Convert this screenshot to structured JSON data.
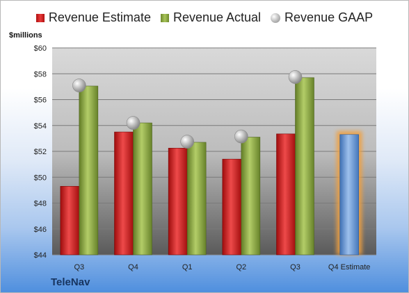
{
  "chart_data": {
    "type": "bar",
    "company": "TeleNav",
    "y_unit_label": "$millions",
    "categories": [
      "Q3",
      "Q4",
      "Q1",
      "Q2",
      "Q3",
      "Q4 Estimate"
    ],
    "series": [
      {
        "name": "Revenue Estimate",
        "color": "#d42020",
        "values": [
          49.3,
          53.5,
          52.25,
          51.4,
          53.35,
          null
        ]
      },
      {
        "name": "Revenue Actual",
        "color": "#8fad45",
        "values": [
          57.05,
          54.2,
          52.7,
          53.1,
          57.7,
          null
        ]
      },
      {
        "name": "Revenue GAAP",
        "color": "#b0b0b0",
        "type": "marker",
        "values": [
          57.1,
          54.2,
          52.75,
          53.15,
          57.75,
          null
        ]
      }
    ],
    "forecast": {
      "category": "Q4 Estimate",
      "value": 53.3,
      "color": "#5b8fd0"
    },
    "yticks": [
      "$44",
      "$46",
      "$48",
      "$50",
      "$52",
      "$54",
      "$56",
      "$58",
      "$60"
    ],
    "ylim": [
      44,
      60
    ],
    "grid": true,
    "legend_position": "top"
  }
}
